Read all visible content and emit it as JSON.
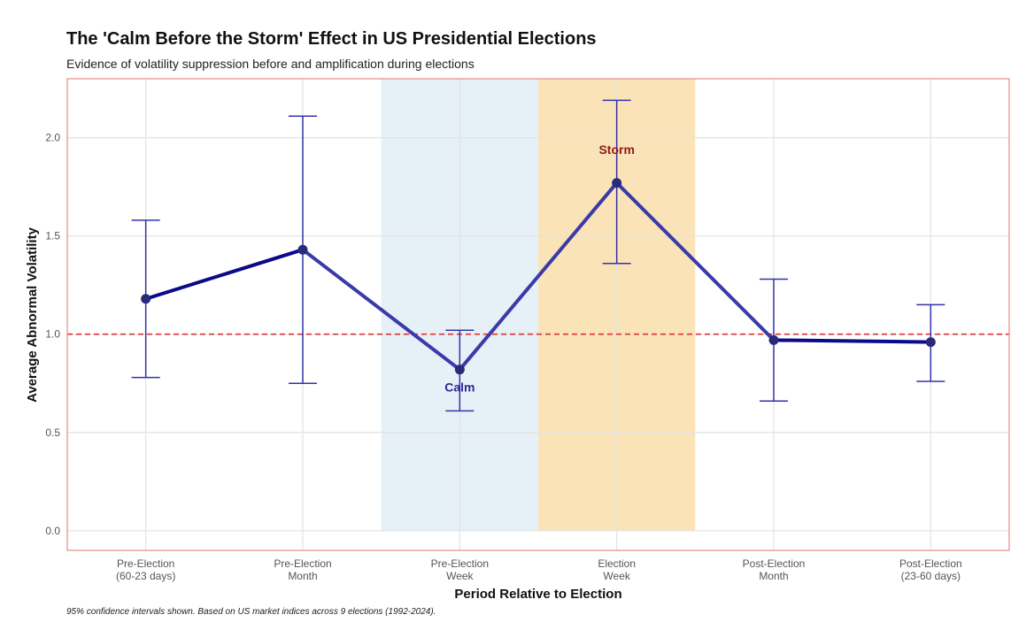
{
  "chart_data": {
    "type": "line",
    "title": "The 'Calm Before the Storm' Effect in US Presidential Elections",
    "subtitle": "Evidence of volatility suppression before and amplification during elections",
    "xlabel": "Period Relative to Election",
    "ylabel": "Average Abnormal Volatility",
    "caption": "95% confidence intervals shown. Based on US market indices across 9 elections (1992-2024).",
    "categories": [
      [
        "Pre-Election",
        "(60-23 days)"
      ],
      [
        "Pre-Election",
        "Month"
      ],
      [
        "Pre-Election",
        "Week"
      ],
      [
        "Election",
        "Week"
      ],
      [
        "Post-Election",
        "Month"
      ],
      [
        "Post-Election",
        "(23-60 days)"
      ]
    ],
    "values": [
      1.18,
      1.43,
      0.82,
      1.77,
      0.97,
      0.96
    ],
    "ci_lower": [
      0.78,
      0.75,
      0.61,
      1.36,
      0.66,
      0.76
    ],
    "ci_upper": [
      1.58,
      2.11,
      1.02,
      2.19,
      1.28,
      1.15
    ],
    "ylim": [
      -0.1,
      2.3
    ],
    "yticks": [
      0.0,
      0.5,
      1.0,
      1.5,
      2.0
    ],
    "ytick_labels": [
      "0.0",
      "0.5",
      "1.0",
      "1.5",
      "2.0"
    ],
    "reference_line": 1.0,
    "shaded_regions": [
      {
        "category_index": 2,
        "color": "#e6f0f7"
      },
      {
        "category_index": 3,
        "color": "#fbe3b8"
      }
    ],
    "annotations": [
      {
        "text": "Calm",
        "category_index": 2,
        "y": 0.73,
        "color": "#2b2b9a"
      },
      {
        "text": "Storm",
        "category_index": 3,
        "y": 1.94,
        "color": "#8b1a1a"
      }
    ],
    "colors": {
      "line_start": "#0a0a8a",
      "line_shaded": "#3a3aa8",
      "errorbar": "#3333aa",
      "point": "#2a2a7a",
      "reference": "#e03030",
      "grid": "#e3e3e3",
      "border": "#e88a8a"
    },
    "grid": true
  }
}
